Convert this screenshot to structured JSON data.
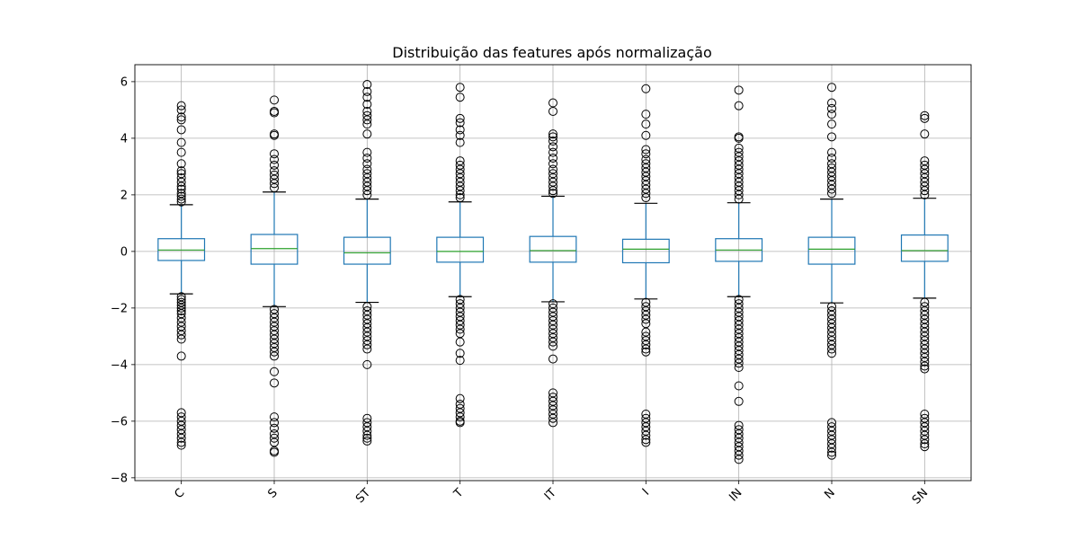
{
  "chart_data": {
    "type": "box",
    "title": "Distribuição das features após normalização",
    "xlabel": "",
    "ylabel": "",
    "ylim": [
      -8.1,
      6.6
    ],
    "yticks": [
      6,
      4,
      2,
      0,
      -2,
      -4,
      -6,
      -8
    ],
    "ytick_labels": [
      "6",
      "4",
      "2",
      "0",
      "−2",
      "−4",
      "−6",
      "−8"
    ],
    "grid": true,
    "categories": [
      "C",
      "S",
      "ST",
      "T",
      "IT",
      "I",
      "IN",
      "N",
      "SN"
    ],
    "box_color": "#1f77b4",
    "median_color": "#2ca02c",
    "boxes": [
      {
        "label": "C",
        "q1": -0.32,
        "median": 0.05,
        "q3": 0.45,
        "whisker_low": -1.5,
        "whisker_high": 1.65,
        "outliers": [
          5.15,
          5.0,
          4.75,
          4.65,
          4.3,
          3.85,
          3.5,
          3.1,
          2.85,
          2.75,
          2.6,
          2.45,
          2.3,
          2.2,
          2.05,
          1.95,
          1.85,
          1.75,
          -1.6,
          -1.7,
          -1.8,
          -1.9,
          -2.0,
          -2.1,
          -2.2,
          -2.35,
          -2.5,
          -2.65,
          -2.8,
          -2.95,
          -3.1,
          -3.7,
          -5.7,
          -5.85,
          -6.0,
          -6.15,
          -6.3,
          -6.45,
          -6.6,
          -6.75,
          -6.85
        ]
      },
      {
        "label": "S",
        "q1": -0.45,
        "median": 0.1,
        "q3": 0.6,
        "whisker_low": -1.95,
        "whisker_high": 2.1,
        "outliers": [
          5.35,
          4.95,
          4.9,
          4.15,
          4.1,
          3.45,
          3.25,
          3.05,
          2.85,
          2.7,
          2.55,
          2.4,
          2.25,
          -2.05,
          -2.2,
          -2.35,
          -2.5,
          -2.65,
          -2.8,
          -2.95,
          -3.1,
          -3.25,
          -3.4,
          -3.55,
          -3.7,
          -4.25,
          -4.65,
          -5.85,
          -6.05,
          -6.25,
          -6.45,
          -6.6,
          -6.75,
          -7.05,
          -7.1
        ]
      },
      {
        "label": "ST",
        "q1": -0.45,
        "median": -0.05,
        "q3": 0.5,
        "whisker_low": -1.8,
        "whisker_high": 1.85,
        "outliers": [
          5.9,
          5.65,
          5.45,
          5.2,
          4.95,
          4.8,
          4.65,
          4.5,
          4.15,
          3.5,
          3.3,
          3.1,
          2.9,
          2.75,
          2.6,
          2.45,
          2.3,
          2.15,
          2.0,
          -1.95,
          -2.1,
          -2.25,
          -2.4,
          -2.55,
          -2.7,
          -2.85,
          -3.0,
          -3.15,
          -3.3,
          -3.45,
          -4.0,
          -5.9,
          -6.05,
          -6.2,
          -6.35,
          -6.5,
          -6.6,
          -6.7
        ]
      },
      {
        "label": "T",
        "q1": -0.38,
        "median": 0.0,
        "q3": 0.5,
        "whisker_low": -1.6,
        "whisker_high": 1.75,
        "outliers": [
          5.8,
          5.45,
          4.7,
          4.55,
          4.3,
          4.1,
          3.85,
          3.2,
          3.05,
          2.9,
          2.75,
          2.6,
          2.45,
          2.3,
          2.15,
          2.0,
          1.9,
          -1.7,
          -1.85,
          -2.0,
          -2.15,
          -2.3,
          -2.45,
          -2.6,
          -2.75,
          -2.9,
          -3.2,
          -3.6,
          -3.85,
          -5.2,
          -5.4,
          -5.55,
          -5.7,
          -5.85,
          -6.0,
          -6.05
        ]
      },
      {
        "label": "IT",
        "q1": -0.38,
        "median": 0.03,
        "q3": 0.53,
        "whisker_low": -1.78,
        "whisker_high": 1.95,
        "outliers": [
          5.25,
          4.95,
          4.15,
          4.05,
          3.9,
          3.7,
          3.5,
          3.3,
          3.1,
          2.9,
          2.75,
          2.6,
          2.45,
          2.3,
          2.15,
          2.05,
          -1.85,
          -2.0,
          -2.15,
          -2.3,
          -2.45,
          -2.6,
          -2.75,
          -2.9,
          -3.05,
          -3.2,
          -3.35,
          -3.8,
          -5.0,
          -5.15,
          -5.3,
          -5.45,
          -5.6,
          -5.75,
          -5.9,
          -6.05
        ]
      },
      {
        "label": "I",
        "q1": -0.4,
        "median": 0.08,
        "q3": 0.43,
        "whisker_low": -1.68,
        "whisker_high": 1.7,
        "outliers": [
          5.75,
          4.85,
          4.5,
          4.1,
          3.6,
          3.45,
          3.25,
          3.1,
          2.95,
          2.8,
          2.65,
          2.5,
          2.35,
          2.2,
          2.05,
          1.9,
          -1.8,
          -1.95,
          -2.1,
          -2.25,
          -2.4,
          -2.55,
          -2.85,
          -3.0,
          -3.15,
          -3.3,
          -3.45,
          -3.55,
          -5.75,
          -5.9,
          -6.05,
          -6.2,
          -6.35,
          -6.5,
          -6.65,
          -6.75
        ]
      },
      {
        "label": "IN",
        "q1": -0.35,
        "median": 0.05,
        "q3": 0.45,
        "whisker_low": -1.6,
        "whisker_high": 1.72,
        "outliers": [
          5.7,
          5.15,
          4.05,
          4.0,
          3.65,
          3.5,
          3.35,
          3.2,
          3.05,
          2.9,
          2.75,
          2.6,
          2.45,
          2.3,
          2.15,
          2.0,
          1.85,
          -1.7,
          -1.85,
          -2.0,
          -2.15,
          -2.3,
          -2.45,
          -2.6,
          -2.75,
          -2.9,
          -3.05,
          -3.2,
          -3.35,
          -3.5,
          -3.65,
          -3.8,
          -3.95,
          -4.1,
          -4.75,
          -5.3,
          -6.15,
          -6.3,
          -6.45,
          -6.6,
          -6.75,
          -6.9,
          -7.05,
          -7.2,
          -7.35
        ]
      },
      {
        "label": "N",
        "q1": -0.45,
        "median": 0.08,
        "q3": 0.5,
        "whisker_low": -1.82,
        "whisker_high": 1.85,
        "outliers": [
          5.8,
          5.25,
          5.05,
          4.85,
          4.5,
          4.05,
          3.5,
          3.3,
          3.1,
          2.95,
          2.8,
          2.65,
          2.5,
          2.35,
          2.2,
          2.05,
          -1.95,
          -2.1,
          -2.25,
          -2.4,
          -2.55,
          -2.7,
          -2.85,
          -3.0,
          -3.15,
          -3.3,
          -3.45,
          -3.6,
          -6.05,
          -6.2,
          -6.35,
          -6.5,
          -6.65,
          -6.8,
          -6.95,
          -7.1,
          -7.2
        ]
      },
      {
        "label": "SN",
        "q1": -0.35,
        "median": 0.03,
        "q3": 0.58,
        "whisker_low": -1.65,
        "whisker_high": 1.88,
        "outliers": [
          4.8,
          4.7,
          4.15,
          3.2,
          3.05,
          2.9,
          2.75,
          2.6,
          2.45,
          2.3,
          2.15,
          2.0,
          -1.8,
          -1.95,
          -2.1,
          -2.25,
          -2.4,
          -2.55,
          -2.7,
          -2.85,
          -3.0,
          -3.15,
          -3.3,
          -3.45,
          -3.6,
          -3.75,
          -3.9,
          -4.05,
          -4.15,
          -5.75,
          -5.9,
          -6.05,
          -6.2,
          -6.35,
          -6.5,
          -6.65,
          -6.8,
          -6.9
        ]
      }
    ]
  }
}
